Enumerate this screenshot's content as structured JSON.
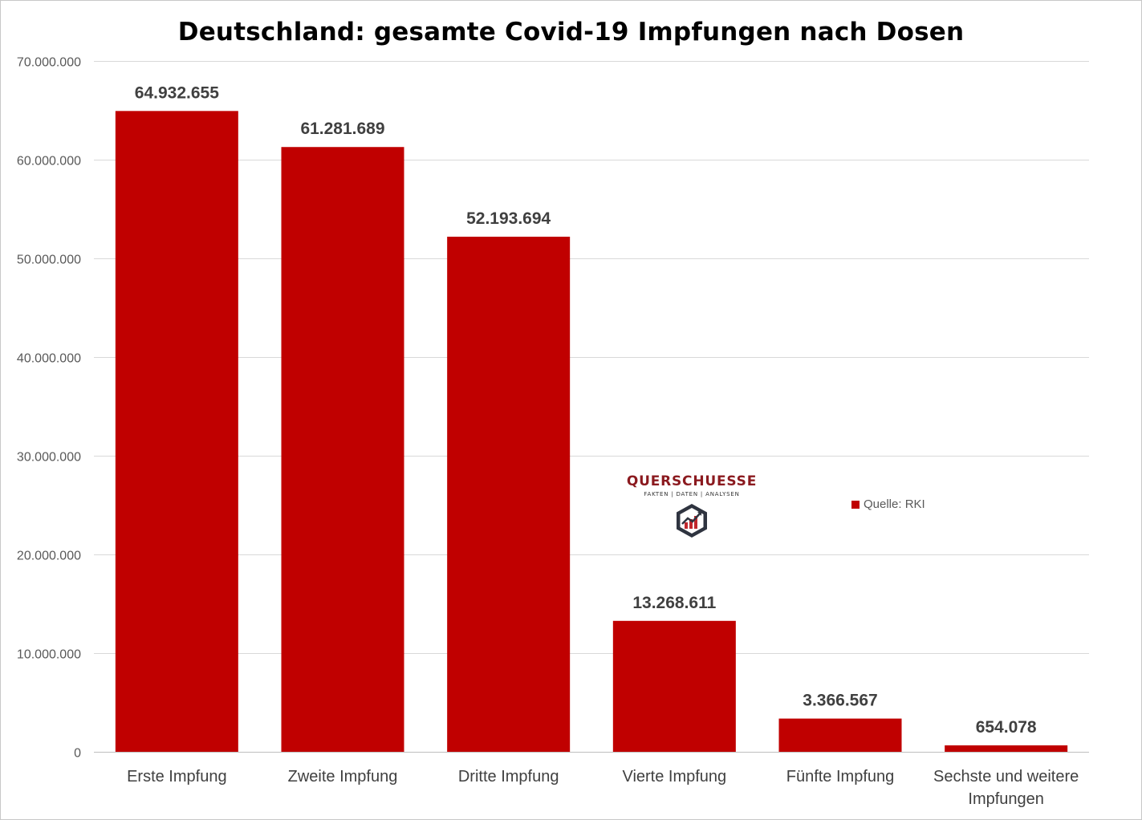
{
  "chart_data": {
    "type": "bar",
    "title": "Deutschland: gesamte Covid-19 Impfungen nach Dosen",
    "categories": [
      [
        "Erste Impfung"
      ],
      [
        "Zweite Impfung"
      ],
      [
        "Dritte Impfung"
      ],
      [
        "Vierte Impfung"
      ],
      [
        "Fünfte Impfung"
      ],
      [
        "Sechste und weitere",
        "Impfungen"
      ]
    ],
    "series": [
      {
        "name": "Quelle: RKI",
        "color": "#c00000",
        "values": [
          64932655,
          61281689,
          52193694,
          13268611,
          3366567,
          654078
        ],
        "value_labels": [
          "64.932.655",
          "61.281.689",
          "52.193.694",
          "13.268.611",
          "3.366.567",
          "654.078"
        ]
      }
    ],
    "ylim": [
      0,
      70000000
    ],
    "yticks": [
      0,
      10000000,
      20000000,
      30000000,
      40000000,
      50000000,
      60000000,
      70000000
    ],
    "ytick_labels": [
      "0",
      "10.000.000",
      "20.000.000",
      "30.000.000",
      "40.000.000",
      "50.000.000",
      "60.000.000",
      "70.000.000"
    ],
    "grid": true,
    "legend_position": "right",
    "xlabel": "",
    "ylabel": ""
  },
  "watermark": {
    "name": "QUERSCHUESSE",
    "tagline": "FAKTEN | DATEN | ANALYSEN",
    "icon": "hexagon-chart-logo-icon"
  },
  "legend": {
    "label": "Quelle: RKI"
  }
}
